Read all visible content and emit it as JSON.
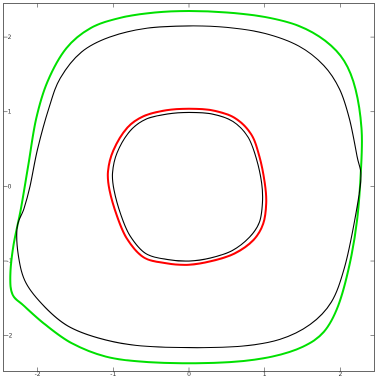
{
  "chart_data": {
    "type": "line",
    "title": "",
    "xlabel": "",
    "ylabel": "",
    "xlim": [
      -2.45,
      2.45
    ],
    "ylim": [
      -2.48,
      2.45
    ],
    "grid": false,
    "x_ticks": [
      {
        "value": -2,
        "label": "-2"
      },
      {
        "value": -1,
        "label": "-1"
      },
      {
        "value": 0,
        "label": "0"
      },
      {
        "value": 1,
        "label": "1"
      },
      {
        "value": 2,
        "label": "2"
      }
    ],
    "y_ticks": [
      {
        "value": 2,
        "label": "2"
      },
      {
        "value": 1,
        "label": "1"
      },
      {
        "value": 0,
        "label": "0"
      },
      {
        "value": -1,
        "label": "-1"
      },
      {
        "value": -2,
        "label": "-2"
      }
    ],
    "series": [
      {
        "color": "#00e000",
        "points": [
          [
            0.0,
            2.35
          ],
          [
            0.5,
            2.33
          ],
          [
            1.0,
            2.27
          ],
          [
            1.45,
            2.15
          ],
          [
            1.8,
            1.95
          ],
          [
            2.05,
            1.68
          ],
          [
            2.2,
            1.3
          ],
          [
            2.28,
            0.75
          ],
          [
            2.27,
            0.2
          ],
          [
            2.22,
            -0.45
          ],
          [
            2.12,
            -1.05
          ],
          [
            1.97,
            -1.6
          ],
          [
            1.78,
            -1.95
          ],
          [
            1.5,
            -2.15
          ],
          [
            1.1,
            -2.28
          ],
          [
            0.6,
            -2.35
          ],
          [
            0.0,
            -2.37
          ],
          [
            -0.6,
            -2.35
          ],
          [
            -1.1,
            -2.28
          ],
          [
            -1.55,
            -2.1
          ],
          [
            -1.9,
            -1.85
          ],
          [
            -2.18,
            -1.6
          ],
          [
            -2.33,
            -1.45
          ],
          [
            -2.36,
            -1.2
          ],
          [
            -2.32,
            -0.8
          ],
          [
            -2.22,
            -0.3
          ],
          [
            -2.12,
            0.3
          ],
          [
            -2.02,
            0.9
          ],
          [
            -1.87,
            1.4
          ],
          [
            -1.62,
            1.85
          ],
          [
            -1.3,
            2.12
          ],
          [
            -0.9,
            2.26
          ],
          [
            -0.45,
            2.33
          ],
          [
            0.0,
            2.35
          ]
        ]
      },
      {
        "color": "#000000",
        "points": [
          [
            0.0,
            2.15
          ],
          [
            0.5,
            2.13
          ],
          [
            1.0,
            2.05
          ],
          [
            1.45,
            1.88
          ],
          [
            1.78,
            1.62
          ],
          [
            1.99,
            1.3
          ],
          [
            2.12,
            0.9
          ],
          [
            2.22,
            0.4
          ],
          [
            2.27,
            0.1
          ],
          [
            2.18,
            -0.5
          ],
          [
            2.05,
            -1.1
          ],
          [
            1.88,
            -1.55
          ],
          [
            1.6,
            -1.85
          ],
          [
            1.2,
            -2.05
          ],
          [
            0.7,
            -2.14
          ],
          [
            0.0,
            -2.16
          ],
          [
            -0.7,
            -2.13
          ],
          [
            -1.2,
            -2.03
          ],
          [
            -1.6,
            -1.87
          ],
          [
            -1.9,
            -1.62
          ],
          [
            -2.15,
            -1.3
          ],
          [
            -2.25,
            -0.95
          ],
          [
            -2.27,
            -0.55
          ],
          [
            -2.18,
            -0.3
          ],
          [
            -2.1,
            0.0
          ],
          [
            -2.0,
            0.5
          ],
          [
            -1.85,
            1.05
          ],
          [
            -1.7,
            1.45
          ],
          [
            -1.42,
            1.8
          ],
          [
            -1.05,
            2.0
          ],
          [
            -0.55,
            2.12
          ],
          [
            0.0,
            2.15
          ]
        ]
      },
      {
        "color": "#ff0000",
        "points": [
          [
            0.0,
            1.04
          ],
          [
            0.3,
            1.02
          ],
          [
            0.6,
            0.92
          ],
          [
            0.82,
            0.7
          ],
          [
            0.93,
            0.4
          ],
          [
            1.0,
            0.05
          ],
          [
            1.02,
            -0.22
          ],
          [
            0.98,
            -0.5
          ],
          [
            0.85,
            -0.72
          ],
          [
            0.6,
            -0.9
          ],
          [
            0.3,
            -1.0
          ],
          [
            0.0,
            -1.05
          ],
          [
            -0.3,
            -1.03
          ],
          [
            -0.6,
            -0.95
          ],
          [
            -0.82,
            -0.7
          ],
          [
            -0.95,
            -0.4
          ],
          [
            -1.05,
            -0.05
          ],
          [
            -1.07,
            0.2
          ],
          [
            -1.0,
            0.48
          ],
          [
            -0.82,
            0.78
          ],
          [
            -0.6,
            0.94
          ],
          [
            -0.3,
            1.02
          ],
          [
            0.0,
            1.04
          ]
        ]
      },
      {
        "color": "#000000",
        "points": [
          [
            0.0,
            0.99
          ],
          [
            0.3,
            0.97
          ],
          [
            0.58,
            0.87
          ],
          [
            0.78,
            0.66
          ],
          [
            0.89,
            0.37
          ],
          [
            0.96,
            0.04
          ],
          [
            0.97,
            -0.22
          ],
          [
            0.93,
            -0.48
          ],
          [
            0.8,
            -0.68
          ],
          [
            0.57,
            -0.86
          ],
          [
            0.28,
            -0.96
          ],
          [
            0.0,
            -1.0
          ],
          [
            -0.28,
            -0.98
          ],
          [
            -0.57,
            -0.9
          ],
          [
            -0.78,
            -0.66
          ],
          [
            -0.9,
            -0.38
          ],
          [
            -0.99,
            -0.05
          ],
          [
            -1.01,
            0.18
          ],
          [
            -0.95,
            0.45
          ],
          [
            -0.78,
            0.74
          ],
          [
            -0.57,
            0.9
          ],
          [
            -0.28,
            0.97
          ],
          [
            0.0,
            0.99
          ]
        ]
      }
    ]
  }
}
